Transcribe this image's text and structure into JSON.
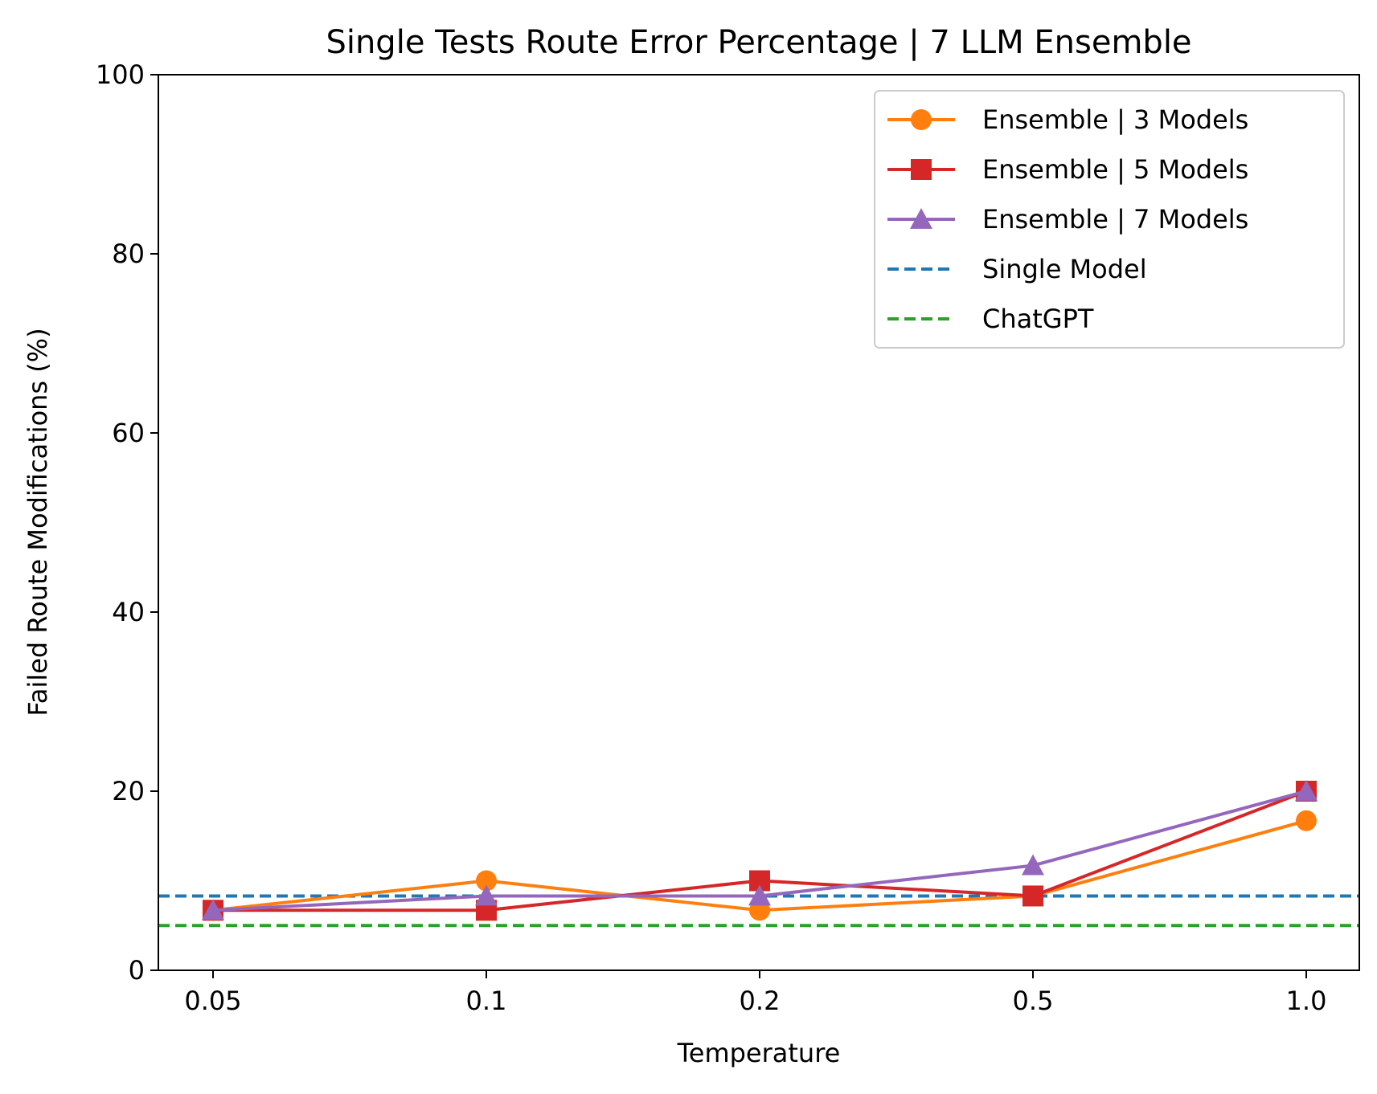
{
  "chart_data": {
    "type": "line",
    "title": "Single Tests Route Error Percentage | 7 LLM Ensemble",
    "xlabel": "Temperature",
    "ylabel": "Failed Route Modifications (%)",
    "categories": [
      "0.05",
      "0.1",
      "0.2",
      "0.5",
      "1.0"
    ],
    "ylim": [
      0,
      100
    ],
    "yticks": [
      "0",
      "20",
      "40",
      "60",
      "80",
      "100"
    ],
    "yticks_values": [
      0,
      20,
      40,
      60,
      80,
      100
    ],
    "grid": false,
    "legend_position": "top-right",
    "series": [
      {
        "name": "Ensemble | 3 Models",
        "values": [
          6.7,
          10.0,
          6.7,
          8.3,
          16.7
        ],
        "color": "#ff7f0e",
        "marker": "circle"
      },
      {
        "name": "Ensemble | 5 Models",
        "values": [
          6.7,
          6.7,
          10.0,
          8.3,
          20.0
        ],
        "color": "#d62728",
        "marker": "square"
      },
      {
        "name": "Ensemble | 7 Models",
        "values": [
          6.7,
          8.3,
          8.3,
          11.7,
          20.0
        ],
        "color": "#9467bd",
        "marker": "triangle"
      }
    ],
    "reference_lines": [
      {
        "name": "Single Model",
        "value": 8.3,
        "color": "#1f77b4",
        "style": "dashed"
      },
      {
        "name": "ChatGPT",
        "value": 5.0,
        "color": "#2ca02c",
        "style": "dashed"
      }
    ]
  }
}
